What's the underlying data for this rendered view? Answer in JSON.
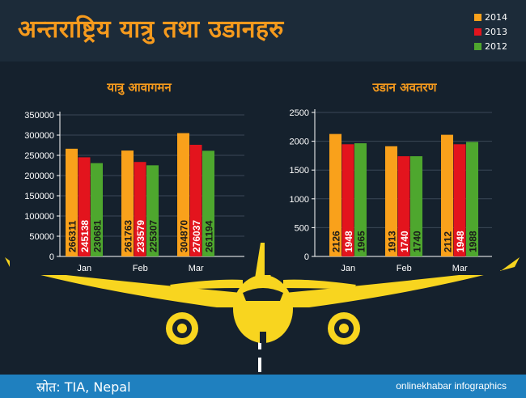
{
  "page": {
    "title": "अन्तराष्ट्रिय यात्रु तथा उडानहरु",
    "source": "स्रोत: TIA, Nepal",
    "brand": "onlinekhabar infographics",
    "legend": [
      {
        "label": "2014",
        "color": "#f9a11b"
      },
      {
        "label": "2013",
        "color": "#e3141d"
      },
      {
        "label": "2012",
        "color": "#4ea72e"
      }
    ]
  },
  "chart_data": [
    {
      "type": "bar",
      "title": "यात्रु आवागमन",
      "categories": [
        "Jan",
        "Feb",
        "Mar"
      ],
      "series": [
        {
          "name": "2014",
          "values": [
            266311,
            261763,
            304870
          ]
        },
        {
          "name": "2013",
          "values": [
            245138,
            233579,
            276037
          ]
        },
        {
          "name": "2012",
          "values": [
            230681,
            225307,
            261194
          ]
        }
      ],
      "ylim": [
        0,
        350000
      ],
      "yticks": [
        0,
        50000,
        100000,
        150000,
        200000,
        250000,
        300000,
        350000
      ],
      "grid": true
    },
    {
      "type": "bar",
      "title": "उडान अवतरण",
      "categories": [
        "Jan",
        "Feb",
        "Mar"
      ],
      "series": [
        {
          "name": "2014",
          "values": [
            2126,
            1913,
            2112
          ]
        },
        {
          "name": "2013",
          "values": [
            1948,
            1740,
            1948
          ]
        },
        {
          "name": "2012",
          "values": [
            1965,
            1740,
            1988
          ]
        }
      ],
      "ylim": [
        0,
        2500
      ],
      "yticks": [
        0,
        500,
        1000,
        1500,
        2000,
        2500
      ],
      "grid": true
    }
  ]
}
